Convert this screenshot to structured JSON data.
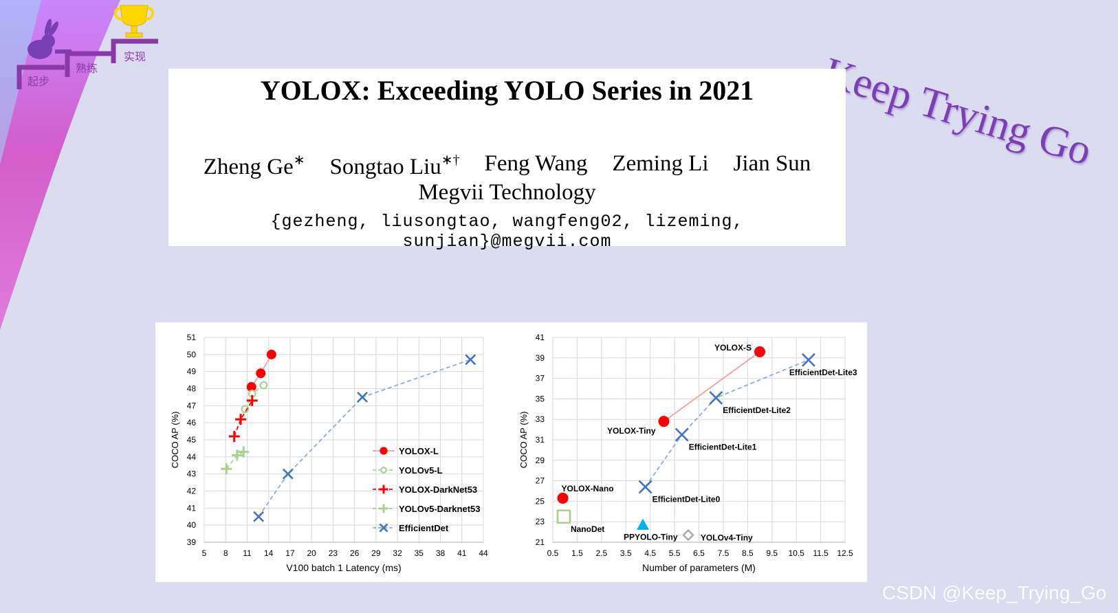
{
  "logo": {
    "steps": [
      "起步",
      "熟练",
      "实现"
    ],
    "icons": [
      "rabbit-icon",
      "trophy-icon"
    ]
  },
  "slogan": "Keep Trying Go",
  "paper": {
    "title": "YOLOX: Exceeding YOLO Series in 2021",
    "authors": [
      {
        "name": "Zheng Ge",
        "mark": "∗"
      },
      {
        "name": "Songtao Liu",
        "mark": "∗†"
      },
      {
        "name": "Feng Wang",
        "mark": ""
      },
      {
        "name": "Zeming Li",
        "mark": ""
      },
      {
        "name": "Jian Sun",
        "mark": ""
      }
    ],
    "affiliation": "Megvii Technology",
    "email": "{gezheng, liusongtao, wangfeng02, lizeming, sunjian}@megvii.com"
  },
  "watermark": "CSDN @Keep_Trying_Go",
  "chart_data": [
    {
      "type": "line",
      "xlabel": "V100 batch 1 Latency (ms)",
      "ylabel": "COCO AP (%)",
      "xlim": [
        5,
        44
      ],
      "ylim": [
        39,
        51
      ],
      "xticks": [
        5,
        8,
        11,
        14,
        17,
        20,
        23,
        26,
        29,
        32,
        35,
        38,
        41,
        44
      ],
      "xtick_labels": [
        "5",
        "8",
        "11",
        "14",
        "17",
        "20",
        "23",
        "26",
        "29",
        "32",
        "35",
        "38",
        "41",
        "44"
      ],
      "yticks": [
        39,
        40,
        41,
        42,
        43,
        44,
        45,
        46,
        47,
        48,
        49,
        50,
        51
      ],
      "grid": true,
      "legend": "bottom-right",
      "series": [
        {
          "name": "YOLOX-L",
          "marker": "filled-circle",
          "color": "#ff0000",
          "line": "solid",
          "line_color": "#f4a0a0",
          "x": [
            11.6,
            12.9,
            14.4
          ],
          "y": [
            48.1,
            48.9,
            50.0
          ]
        },
        {
          "name": "YOLOv5-L",
          "marker": "open-circle",
          "color": "#a9d18e",
          "line": "dashed",
          "line_color": "#a9d18e",
          "x": [
            10.7,
            11.7,
            13.3
          ],
          "y": [
            46.8,
            47.7,
            48.2
          ]
        },
        {
          "name": "YOLOX-DarkNet53",
          "marker": "plus",
          "color": "#ff0000",
          "line": "dashed",
          "line_color": "#ff0000",
          "x": [
            9.2,
            10.1,
            11.7
          ],
          "y": [
            45.2,
            46.2,
            47.3
          ]
        },
        {
          "name": "YOLOv5-Darknet53",
          "marker": "plus",
          "color": "#a9d18e",
          "line": "dashed",
          "line_color": "#a9d18e",
          "x": [
            8.1,
            9.6,
            10.5
          ],
          "y": [
            43.3,
            44.1,
            44.3
          ]
        },
        {
          "name": "EfficientDet",
          "marker": "x",
          "color": "#4472c4",
          "line": "dashed",
          "line_color": "#8faadc",
          "x": [
            12.6,
            16.7,
            27.1,
            42.2
          ],
          "y": [
            40.5,
            43.0,
            47.5,
            49.7
          ]
        }
      ]
    },
    {
      "type": "line",
      "xlabel": "Number of parameters (M)",
      "ylabel": "COCO AP (%)",
      "xlim": [
        0.5,
        12.5
      ],
      "ylim": [
        21,
        41
      ],
      "xticks": [
        0.5,
        1.5,
        2.5,
        3.5,
        4.5,
        5.5,
        6.5,
        7.5,
        8.5,
        9.5,
        10.5,
        11.5,
        12.5
      ],
      "xtick_labels": [
        "0.5",
        "1.5",
        "2.5",
        "3.5",
        "4.5",
        "5.5",
        "6.5",
        "7.5",
        "8.5",
        "9.5",
        "10.5",
        "11.5",
        "12.5"
      ],
      "yticks": [
        21,
        23,
        25,
        27,
        29,
        31,
        33,
        35,
        37,
        39,
        41
      ],
      "grid": true,
      "series": [
        {
          "name": "YOLOX",
          "marker": "filled-circle",
          "color": "#ff0000",
          "line": "solid",
          "line_color": "#f4a0a0",
          "x": [
            5.06,
            9.0
          ],
          "y": [
            32.8,
            39.6
          ]
        },
        {
          "name": "YOLOX-Nano",
          "marker": "filled-circle",
          "color": "#ff0000",
          "line": "none",
          "x": [
            0.91
          ],
          "y": [
            25.3
          ]
        },
        {
          "name": "EfficientDet-Lite",
          "marker": "x",
          "color": "#4472c4",
          "line": "dashed",
          "line_color": "#8faadc",
          "x": [
            4.3,
            5.8,
            7.2,
            11.0
          ],
          "y": [
            26.4,
            31.5,
            35.1,
            38.8
          ]
        },
        {
          "name": "NanoDet",
          "marker": "open-square",
          "color": "#a9d18e",
          "line": "none",
          "x": [
            0.95
          ],
          "y": [
            23.5
          ]
        },
        {
          "name": "PPYOLO-Tiny",
          "marker": "triangle",
          "color": "#00b0f0",
          "line": "none",
          "x": [
            4.2
          ],
          "y": [
            22.7
          ]
        },
        {
          "name": "YOLOv4-Tiny",
          "marker": "diamond",
          "color": "#a6a6a6",
          "line": "none",
          "x": [
            6.06
          ],
          "y": [
            21.7
          ]
        }
      ],
      "annotations": [
        {
          "text": "YOLOX-S",
          "x": 9.0,
          "y": 39.6,
          "pos": "left"
        },
        {
          "text": "YOLOX-Tiny",
          "x": 5.06,
          "y": 32.8,
          "pos": "below-left"
        },
        {
          "text": "YOLOX-Nano",
          "x": 0.91,
          "y": 25.3,
          "pos": "above-right"
        },
        {
          "text": "NanoDet",
          "x": 0.95,
          "y": 23.5,
          "pos": "below-right"
        },
        {
          "text": "PPYOLO-Tiny",
          "x": 4.2,
          "y": 22.7,
          "pos": "below"
        },
        {
          "text": "YOLOv4-Tiny",
          "x": 6.06,
          "y": 21.7,
          "pos": "right"
        },
        {
          "text": "EfficientDet-Lite0",
          "x": 4.3,
          "y": 26.4,
          "pos": "below-right"
        },
        {
          "text": "EfficientDet-Lite1",
          "x": 5.8,
          "y": 31.5,
          "pos": "below-right"
        },
        {
          "text": "EfficientDet-Lite2",
          "x": 7.2,
          "y": 35.1,
          "pos": "below-right"
        },
        {
          "text": "EfficientDet-Lite3",
          "x": 11.0,
          "y": 38.8,
          "pos": "below"
        }
      ]
    }
  ]
}
